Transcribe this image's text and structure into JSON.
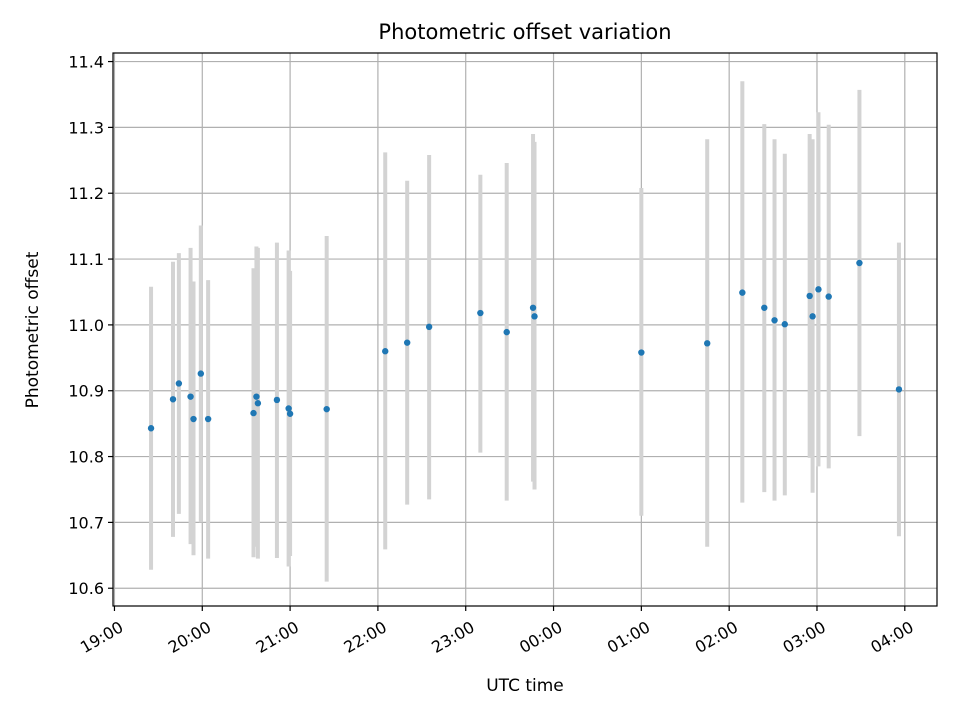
{
  "chart_data": {
    "type": "scatter",
    "title": "Photometric offset variation",
    "xlabel": "UTC time",
    "ylabel": "Photometric offset",
    "x_type": "time",
    "x_range": [
      "18:59",
      "04:22"
    ],
    "ylim": [
      10.573,
      11.413
    ],
    "x_ticks": [
      "19:00",
      "20:00",
      "21:00",
      "22:00",
      "23:00",
      "00:00",
      "01:00",
      "02:00",
      "03:00",
      "04:00"
    ],
    "y_ticks": [
      "10.6",
      "10.7",
      "10.8",
      "10.9",
      "11.0",
      "11.1",
      "11.2",
      "11.3",
      "11.4"
    ],
    "grid": true,
    "point_color": "#1f77b4",
    "errorbar_color": "#d3d3d3",
    "points": [
      {
        "x": "19:25",
        "y": 10.843,
        "lo": 10.628,
        "hi": 11.058
      },
      {
        "x": "19:40",
        "y": 10.887,
        "lo": 10.678,
        "hi": 11.096
      },
      {
        "x": "19:44",
        "y": 10.911,
        "lo": 10.713,
        "hi": 11.109
      },
      {
        "x": "19:52",
        "y": 10.891,
        "lo": 10.667,
        "hi": 11.117
      },
      {
        "x": "19:54",
        "y": 10.857,
        "lo": 10.65,
        "hi": 11.066
      },
      {
        "x": "19:59",
        "y": 10.926,
        "lo": 10.7,
        "hi": 11.151
      },
      {
        "x": "20:04",
        "y": 10.857,
        "lo": 10.645,
        "hi": 11.068
      },
      {
        "x": "20:35",
        "y": 10.866,
        "lo": 10.647,
        "hi": 11.086
      },
      {
        "x": "20:37",
        "y": 10.891,
        "lo": 10.663,
        "hi": 11.119
      },
      {
        "x": "20:38",
        "y": 10.881,
        "lo": 10.645,
        "hi": 11.117
      },
      {
        "x": "20:51",
        "y": 10.886,
        "lo": 10.646,
        "hi": 11.125
      },
      {
        "x": "20:59",
        "y": 10.873,
        "lo": 10.633,
        "hi": 11.113
      },
      {
        "x": "21:00",
        "y": 10.865,
        "lo": 10.649,
        "hi": 11.082
      },
      {
        "x": "21:25",
        "y": 10.872,
        "lo": 10.61,
        "hi": 11.135
      },
      {
        "x": "22:05",
        "y": 10.96,
        "lo": 10.659,
        "hi": 11.262
      },
      {
        "x": "22:20",
        "y": 10.973,
        "lo": 10.727,
        "hi": 11.219
      },
      {
        "x": "22:35",
        "y": 10.997,
        "lo": 10.735,
        "hi": 11.258
      },
      {
        "x": "23:10",
        "y": 11.018,
        "lo": 10.806,
        "hi": 11.228
      },
      {
        "x": "23:28",
        "y": 10.989,
        "lo": 10.733,
        "hi": 11.246
      },
      {
        "x": "23:46",
        "y": 11.026,
        "lo": 10.762,
        "hi": 11.29
      },
      {
        "x": "23:47",
        "y": 11.013,
        "lo": 10.75,
        "hi": 11.278
      },
      {
        "x": "01:00",
        "y": 10.958,
        "lo": 10.71,
        "hi": 11.208
      },
      {
        "x": "01:45",
        "y": 10.972,
        "lo": 10.663,
        "hi": 11.282
      },
      {
        "x": "02:09",
        "y": 11.049,
        "lo": 10.73,
        "hi": 11.37
      },
      {
        "x": "02:24",
        "y": 11.026,
        "lo": 10.746,
        "hi": 11.305
      },
      {
        "x": "02:31",
        "y": 11.007,
        "lo": 10.733,
        "hi": 11.282
      },
      {
        "x": "02:38",
        "y": 11.001,
        "lo": 10.741,
        "hi": 11.26
      },
      {
        "x": "02:55",
        "y": 11.044,
        "lo": 10.798,
        "hi": 11.29
      },
      {
        "x": "02:57",
        "y": 11.013,
        "lo": 10.745,
        "hi": 11.282
      },
      {
        "x": "03:01",
        "y": 11.054,
        "lo": 10.785,
        "hi": 11.323
      },
      {
        "x": "03:08",
        "y": 11.043,
        "lo": 10.782,
        "hi": 11.304
      },
      {
        "x": "03:29",
        "y": 11.094,
        "lo": 10.831,
        "hi": 11.357
      },
      {
        "x": "03:56",
        "y": 10.902,
        "lo": 10.679,
        "hi": 11.125
      }
    ]
  }
}
